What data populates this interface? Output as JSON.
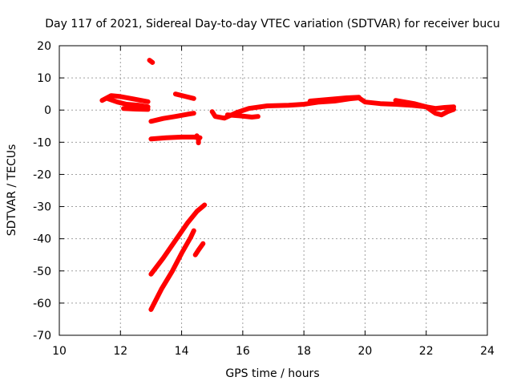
{
  "chart_data": {
    "type": "scatter",
    "title": "Day 117 of 2021, Sidereal Day-to-day VTEC variation (SDTVAR) for receiver bucu",
    "xlabel": "GPS time / hours",
    "ylabel": "SDTVAR / TECUs",
    "xlim": [
      10,
      24
    ],
    "ylim": [
      -70,
      20
    ],
    "xticks": [
      "10",
      "12",
      "14",
      "16",
      "18",
      "20",
      "22",
      "24"
    ],
    "yticks": [
      "20",
      "10",
      "0",
      "-10",
      "-20",
      "-30",
      "-40",
      "-50",
      "-60",
      "-70"
    ],
    "grid": true,
    "marker_color": "#ff0000",
    "series": [
      {
        "name": "isolated-point",
        "points": [
          [
            12.95,
            15.5
          ],
          [
            13.05,
            14.8
          ]
        ]
      },
      {
        "name": "arc-early-upper",
        "points": [
          [
            11.4,
            3.0
          ],
          [
            11.7,
            4.5
          ],
          [
            12.0,
            4.2
          ],
          [
            12.4,
            3.5
          ],
          [
            12.9,
            2.6
          ]
        ]
      },
      {
        "name": "arc-early-lower",
        "points": [
          [
            11.6,
            3.5
          ],
          [
            11.9,
            2.5
          ],
          [
            12.2,
            1.8
          ],
          [
            12.6,
            1.5
          ],
          [
            12.9,
            1.0
          ]
        ]
      },
      {
        "name": "arc-early-tail",
        "points": [
          [
            12.1,
            0.5
          ],
          [
            12.5,
            0.3
          ],
          [
            12.9,
            0.2
          ]
        ]
      },
      {
        "name": "arc-13a",
        "points": [
          [
            13.8,
            5.0
          ],
          [
            14.1,
            4.3
          ],
          [
            14.4,
            3.6
          ]
        ]
      },
      {
        "name": "arc-13b",
        "points": [
          [
            13.0,
            -3.5
          ],
          [
            13.4,
            -2.6
          ],
          [
            13.8,
            -2.0
          ],
          [
            14.2,
            -1.3
          ],
          [
            14.4,
            -1.0
          ]
        ]
      },
      {
        "name": "arc-13c",
        "points": [
          [
            13.0,
            -9.0
          ],
          [
            13.5,
            -8.6
          ],
          [
            14.0,
            -8.4
          ],
          [
            14.4,
            -8.4
          ],
          [
            14.6,
            -8.6
          ]
        ]
      },
      {
        "name": "arc-13d",
        "points": [
          [
            14.5,
            -8.0
          ],
          [
            14.55,
            -9.2
          ],
          [
            14.55,
            -10.2
          ]
        ]
      },
      {
        "name": "arc-steep-1",
        "points": [
          [
            13.0,
            -51.0
          ],
          [
            13.4,
            -46.0
          ],
          [
            13.8,
            -40.5
          ],
          [
            14.2,
            -35.0
          ],
          [
            14.5,
            -31.5
          ],
          [
            14.75,
            -29.5
          ]
        ]
      },
      {
        "name": "arc-steep-2",
        "points": [
          [
            13.0,
            -62.0
          ],
          [
            13.35,
            -55.5
          ],
          [
            13.7,
            -50.0
          ],
          [
            14.0,
            -44.5
          ],
          [
            14.3,
            -39.5
          ],
          [
            14.4,
            -37.5
          ]
        ]
      },
      {
        "name": "arc-steep-3",
        "points": [
          [
            14.45,
            -45.0
          ],
          [
            14.55,
            -43.5
          ],
          [
            14.7,
            -41.5
          ]
        ]
      },
      {
        "name": "arc-late-main",
        "points": [
          [
            15.0,
            -0.5
          ],
          [
            15.1,
            -2.0
          ],
          [
            15.4,
            -2.5
          ],
          [
            15.8,
            -0.8
          ],
          [
            16.2,
            0.5
          ],
          [
            16.8,
            1.3
          ],
          [
            17.5,
            1.5
          ],
          [
            18.0,
            1.8
          ],
          [
            18.5,
            2.5
          ],
          [
            19.0,
            2.8
          ],
          [
            19.5,
            3.5
          ],
          [
            19.8,
            3.8
          ],
          [
            20.0,
            2.5
          ],
          [
            20.5,
            2.0
          ],
          [
            21.0,
            1.8
          ],
          [
            21.5,
            1.5
          ],
          [
            22.0,
            1.0
          ],
          [
            22.3,
            0.5
          ],
          [
            22.6,
            0.8
          ],
          [
            22.9,
            1.0
          ]
        ]
      },
      {
        "name": "arc-late-upper",
        "points": [
          [
            18.2,
            2.8
          ],
          [
            18.8,
            3.3
          ],
          [
            19.4,
            3.8
          ],
          [
            19.8,
            4.0
          ]
        ]
      },
      {
        "name": "arc-late-dip",
        "points": [
          [
            15.5,
            -1.5
          ],
          [
            15.9,
            -1.8
          ],
          [
            16.3,
            -2.2
          ],
          [
            16.5,
            -2.0
          ]
        ]
      },
      {
        "name": "arc-late-tail",
        "points": [
          [
            21.0,
            3.0
          ],
          [
            21.3,
            2.5
          ],
          [
            21.6,
            2.0
          ],
          [
            22.0,
            1.0
          ],
          [
            22.3,
            -1.0
          ],
          [
            22.5,
            -1.5
          ],
          [
            22.7,
            -0.5
          ],
          [
            22.9,
            0.2
          ]
        ]
      }
    ]
  }
}
